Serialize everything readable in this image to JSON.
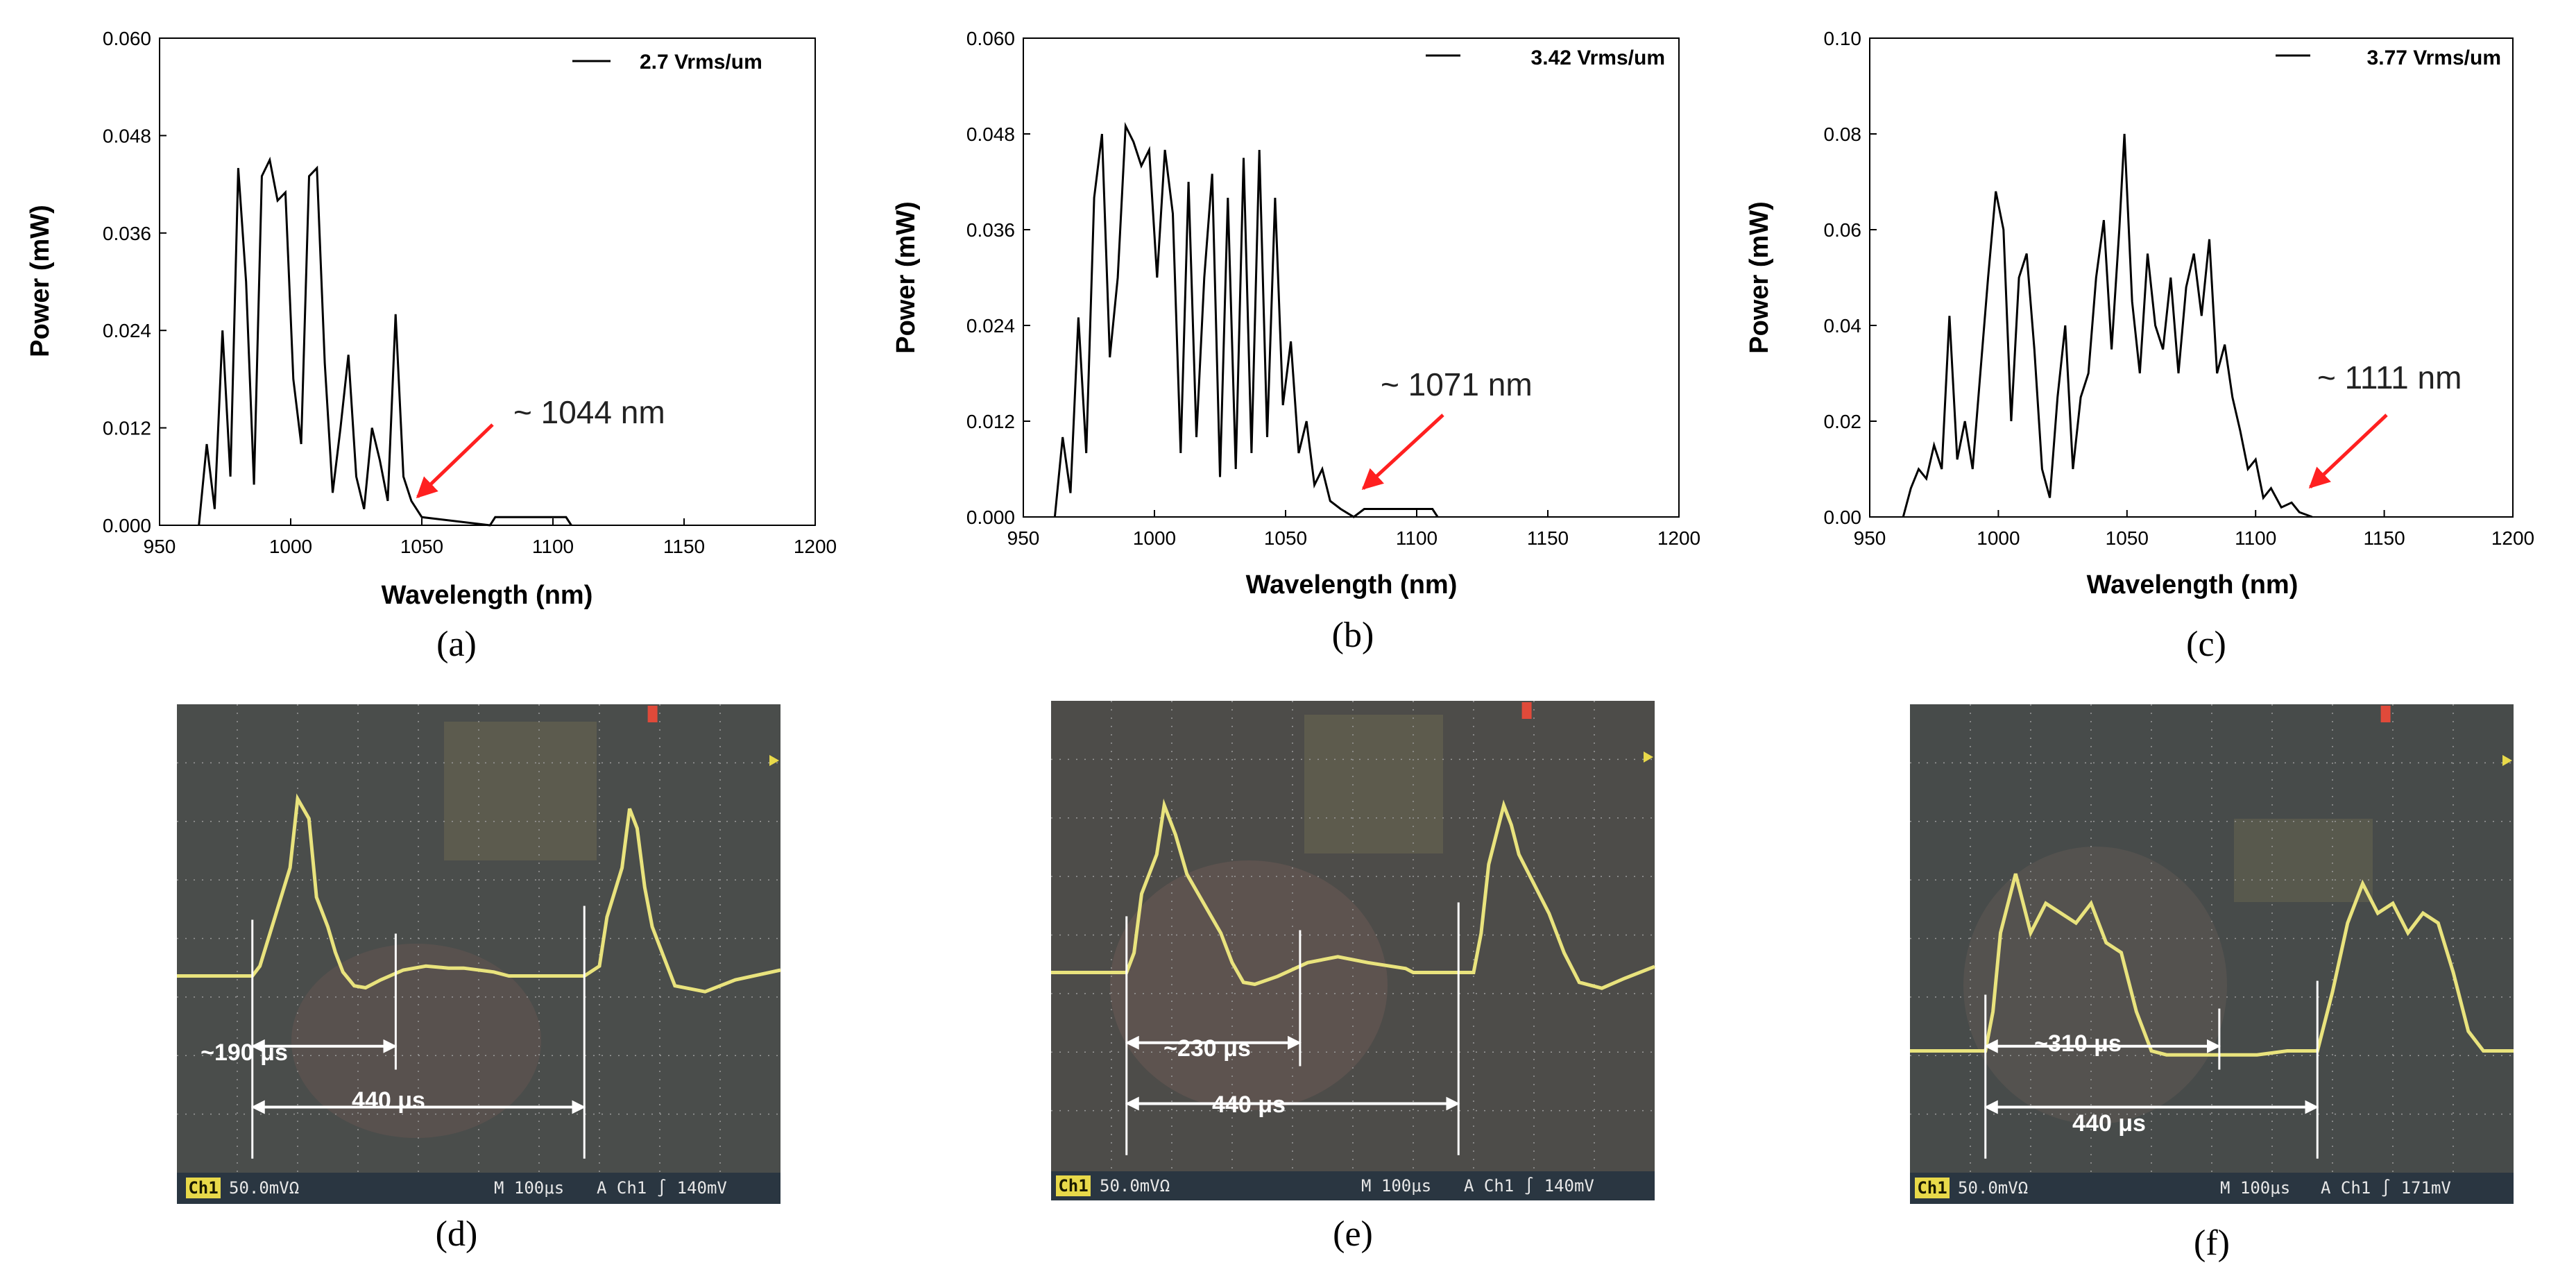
{
  "chart_data": [
    {
      "type": "line",
      "panel": "(a)",
      "title": "",
      "xlabel": "Wavelength (nm)",
      "ylabel": "Power (mW)",
      "xlim": [
        950,
        1200
      ],
      "ylim": [
        0,
        0.06
      ],
      "xticks": [
        "950",
        "1000",
        "1050",
        "1100",
        "1150",
        "1200"
      ],
      "yticks": [
        "0.000",
        "0.012",
        "0.024",
        "0.036",
        "0.048",
        "0.060"
      ],
      "legend": "2.7 Vrms/um",
      "annotation": "~ 1044 nm",
      "annotation_x": 1044,
      "x": [
        965,
        968,
        971,
        974,
        977,
        980,
        983,
        986,
        989,
        992,
        995,
        998,
        1001,
        1004,
        1007,
        1010,
        1013,
        1016,
        1019,
        1022,
        1025,
        1028,
        1031,
        1034,
        1037,
        1040,
        1043,
        1046,
        1050,
        1076,
        1078,
        1105,
        1107
      ],
      "values": [
        0.0,
        0.01,
        0.002,
        0.024,
        0.006,
        0.044,
        0.03,
        0.005,
        0.043,
        0.045,
        0.04,
        0.041,
        0.018,
        0.01,
        0.043,
        0.044,
        0.02,
        0.004,
        0.012,
        0.021,
        0.006,
        0.002,
        0.012,
        0.008,
        0.003,
        0.026,
        0.006,
        0.003,
        0.001,
        0.0,
        0.001,
        0.001,
        0.0
      ]
    },
    {
      "type": "line",
      "panel": "(b)",
      "title": "",
      "xlabel": "Wavelength (nm)",
      "ylabel": "Power (mW)",
      "xlim": [
        950,
        1200
      ],
      "ylim": [
        0,
        0.06
      ],
      "xticks": [
        "950",
        "1000",
        "1050",
        "1100",
        "1150",
        "1200"
      ],
      "yticks": [
        "0.000",
        "0.012",
        "0.024",
        "0.036",
        "0.048",
        "0.060"
      ],
      "legend": "3.42 Vrms/um",
      "annotation": "~ 1071 nm",
      "annotation_x": 1071,
      "x": [
        962,
        965,
        968,
        971,
        974,
        977,
        980,
        983,
        986,
        989,
        992,
        995,
        998,
        1001,
        1004,
        1007,
        1010,
        1013,
        1016,
        1019,
        1022,
        1025,
        1028,
        1031,
        1034,
        1037,
        1040,
        1043,
        1046,
        1049,
        1052,
        1055,
        1058,
        1061,
        1064,
        1067,
        1071,
        1076,
        1080,
        1106,
        1108
      ],
      "values": [
        0.0,
        0.01,
        0.003,
        0.025,
        0.008,
        0.04,
        0.048,
        0.02,
        0.03,
        0.049,
        0.047,
        0.044,
        0.046,
        0.03,
        0.046,
        0.038,
        0.008,
        0.042,
        0.01,
        0.03,
        0.043,
        0.005,
        0.04,
        0.006,
        0.045,
        0.008,
        0.046,
        0.01,
        0.04,
        0.014,
        0.022,
        0.008,
        0.012,
        0.004,
        0.006,
        0.002,
        0.001,
        0.0,
        0.001,
        0.001,
        0.0
      ]
    },
    {
      "type": "line",
      "panel": "(c)",
      "title": "",
      "xlabel": "Wavelength (nm)",
      "ylabel": "Power (mW)",
      "xlim": [
        950,
        1200
      ],
      "ylim": [
        0,
        0.1
      ],
      "xticks": [
        "950",
        "1000",
        "1050",
        "1100",
        "1150",
        "1200"
      ],
      "yticks": [
        "0.00",
        "0.02",
        "0.04",
        "0.06",
        "0.08",
        "0.10"
      ],
      "legend": "3.77 Vrms/um",
      "annotation": "~ 1111 nm",
      "annotation_x": 1111,
      "x": [
        963,
        966,
        969,
        972,
        975,
        978,
        981,
        984,
        987,
        990,
        993,
        996,
        999,
        1002,
        1005,
        1008,
        1011,
        1014,
        1017,
        1020,
        1023,
        1026,
        1029,
        1032,
        1035,
        1038,
        1041,
        1044,
        1047,
        1049,
        1052,
        1055,
        1058,
        1061,
        1064,
        1067,
        1070,
        1073,
        1076,
        1079,
        1082,
        1085,
        1088,
        1091,
        1094,
        1097,
        1100,
        1103,
        1106,
        1110,
        1114,
        1117,
        1122
      ],
      "values": [
        0.0,
        0.006,
        0.01,
        0.008,
        0.015,
        0.01,
        0.042,
        0.012,
        0.02,
        0.01,
        0.03,
        0.05,
        0.068,
        0.06,
        0.02,
        0.05,
        0.055,
        0.035,
        0.01,
        0.004,
        0.025,
        0.04,
        0.01,
        0.025,
        0.03,
        0.05,
        0.062,
        0.035,
        0.06,
        0.08,
        0.045,
        0.03,
        0.055,
        0.04,
        0.035,
        0.05,
        0.03,
        0.048,
        0.055,
        0.042,
        0.058,
        0.03,
        0.036,
        0.025,
        0.018,
        0.01,
        0.012,
        0.004,
        0.006,
        0.002,
        0.003,
        0.001,
        0.0
      ]
    },
    {
      "type": "line",
      "panel": "(d)",
      "title": "",
      "status_ch": "Ch1",
      "status_scale": "50.0mVΩ",
      "status_time": "M 100μs",
      "status_trigger": "A  Ch1 ∫  140mV",
      "pulse_label": "~190 μs",
      "period_label": "440 μs",
      "pulse_width_us": 190,
      "period_us": 440,
      "x": [
        0,
        100,
        110,
        130,
        150,
        160,
        175,
        185,
        200,
        210,
        220,
        235,
        250,
        270,
        300,
        330,
        360,
        380,
        420,
        440,
        540,
        560,
        570,
        590,
        600,
        610,
        620,
        630,
        645,
        660,
        700,
        740,
        800
      ],
      "values": [
        0.0,
        0.0,
        0.05,
        0.3,
        0.55,
        0.9,
        0.8,
        0.4,
        0.25,
        0.12,
        0.02,
        -0.05,
        -0.06,
        -0.02,
        0.03,
        0.05,
        0.04,
        0.04,
        0.02,
        0.0,
        0.0,
        0.05,
        0.3,
        0.55,
        0.85,
        0.75,
        0.45,
        0.25,
        0.1,
        -0.05,
        -0.08,
        -0.02,
        0.03
      ]
    },
    {
      "type": "line",
      "panel": "(e)",
      "title": "",
      "status_ch": "Ch1",
      "status_scale": "50.0mVΩ",
      "status_time": "M 100μs",
      "status_trigger": "A  Ch1 ∫  140mV",
      "pulse_label": "~230 μs",
      "period_label": "440 μs",
      "pulse_width_us": 230,
      "period_us": 440,
      "x": [
        0,
        100,
        110,
        120,
        140,
        150,
        165,
        180,
        195,
        210,
        225,
        240,
        255,
        270,
        300,
        340,
        380,
        420,
        470,
        480,
        560,
        570,
        580,
        600,
        610,
        620,
        640,
        660,
        680,
        700,
        730,
        760,
        800
      ],
      "values": [
        0.0,
        0.0,
        0.1,
        0.4,
        0.6,
        0.85,
        0.7,
        0.5,
        0.4,
        0.3,
        0.2,
        0.05,
        -0.05,
        -0.06,
        -0.02,
        0.05,
        0.08,
        0.05,
        0.02,
        0.0,
        0.0,
        0.2,
        0.55,
        0.85,
        0.75,
        0.6,
        0.45,
        0.3,
        0.1,
        -0.05,
        -0.08,
        -0.03,
        0.03
      ]
    },
    {
      "type": "line",
      "panel": "(f)",
      "title": "",
      "status_ch": "Ch1",
      "status_scale": "50.0mVΩ",
      "status_time": "M 100μs",
      "status_trigger": "A  Ch1 ∫  171mV",
      "pulse_label": "~310 μs",
      "period_label": "440 μs",
      "pulse_width_us": 310,
      "period_us": 440,
      "x": [
        0,
        100,
        110,
        120,
        140,
        160,
        180,
        200,
        220,
        240,
        260,
        280,
        300,
        320,
        340,
        360,
        380,
        420,
        460,
        500,
        540,
        560,
        580,
        600,
        620,
        640,
        660,
        680,
        700,
        720,
        740,
        760,
        800
      ],
      "values": [
        0.0,
        0.0,
        0.2,
        0.6,
        0.9,
        0.6,
        0.75,
        0.7,
        0.65,
        0.75,
        0.55,
        0.5,
        0.2,
        0.0,
        -0.02,
        -0.02,
        -0.02,
        -0.02,
        -0.02,
        0.0,
        0.0,
        0.3,
        0.65,
        0.85,
        0.7,
        0.75,
        0.6,
        0.7,
        0.65,
        0.4,
        0.1,
        0.0,
        0.0
      ]
    }
  ]
}
